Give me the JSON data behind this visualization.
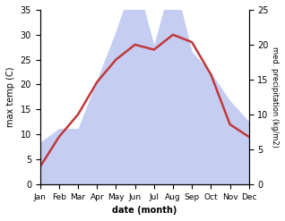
{
  "months": [
    "Jan",
    "Feb",
    "Mar",
    "Apr",
    "May",
    "Jun",
    "Jul",
    "Aug",
    "Sep",
    "Oct",
    "Nov",
    "Dec"
  ],
  "temperature": [
    3.5,
    9.5,
    14.0,
    20.5,
    25.0,
    28.0,
    27.0,
    30.0,
    28.5,
    22.0,
    12.0,
    9.5
  ],
  "precipitation_kgm2": [
    6,
    8,
    8,
    15,
    22,
    30,
    20,
    30,
    19,
    16,
    12,
    9
  ],
  "temp_color": "#c0393b",
  "precip_fill_color": "#c5cef2",
  "temp_ylim": [
    0,
    35
  ],
  "precip_ylim": [
    0,
    25
  ],
  "temp_yticks": [
    0,
    5,
    10,
    15,
    20,
    25,
    30,
    35
  ],
  "precip_yticks": [
    0,
    5,
    10,
    15,
    20,
    25
  ],
  "xlabel": "date (month)",
  "ylabel_left": "max temp (C)",
  "ylabel_right": "med. precipitation (kg/m2)"
}
